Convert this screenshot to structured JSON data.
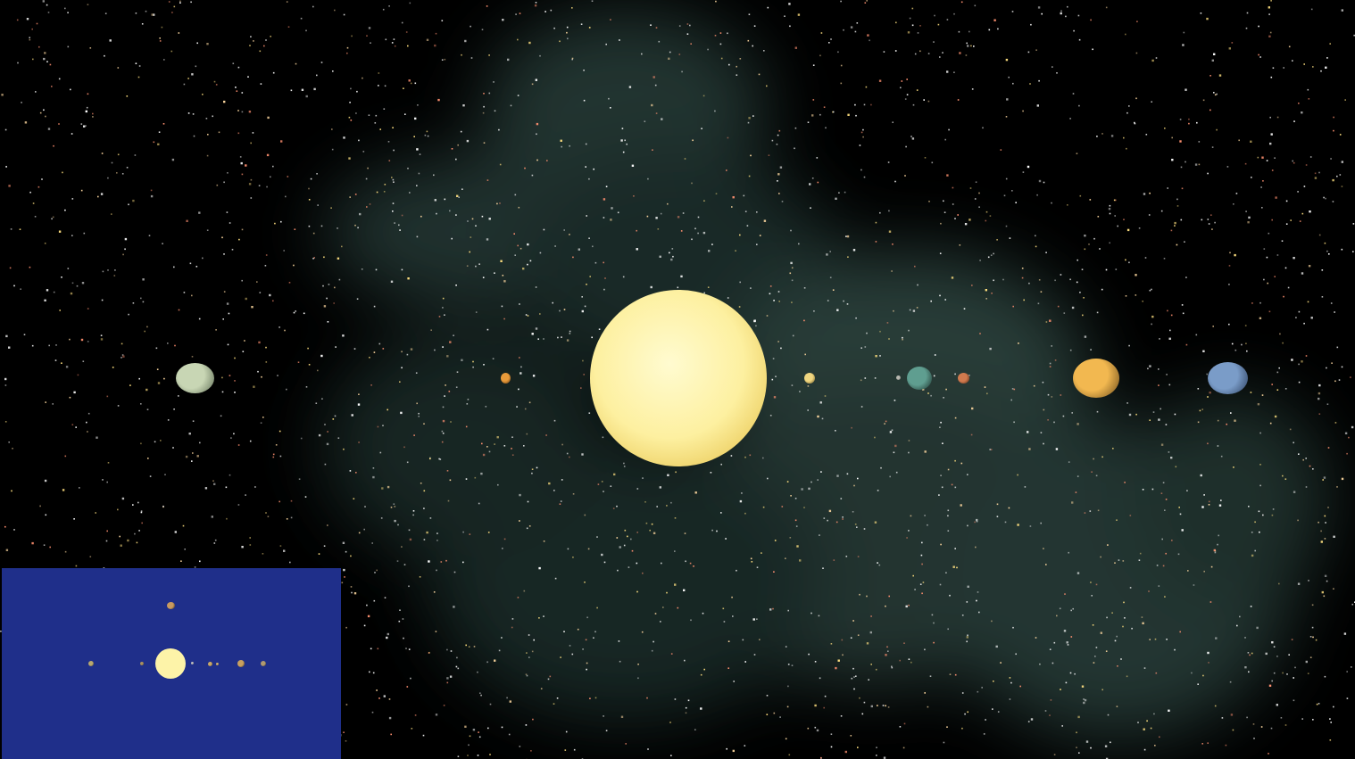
{
  "scene": {
    "background_color": "#000000",
    "nebula_color": "#4a6e66",
    "star_color": "#ffffff",
    "bodies": [
      {
        "name": "sun",
        "color": "#fdf3a8",
        "rim_color": "#f4e07a"
      },
      {
        "name": "far-left-planet",
        "color": "#c8d6b4",
        "rim_color": "#5f6e55"
      },
      {
        "name": "small-orange-planet",
        "color": "#e89a3a",
        "rim_color": "#6b3e10"
      },
      {
        "name": "small-yellow-planet",
        "color": "#f0d680",
        "rim_color": "#6b5720"
      },
      {
        "name": "tiny-grey-moon",
        "color": "#b8b8b0",
        "rim_color": "#505050"
      },
      {
        "name": "teal-planet",
        "color": "#5f9e90",
        "rim_color": "#1a2f2a"
      },
      {
        "name": "rust-planet",
        "color": "#d07a4e",
        "rim_color": "#5a2a14"
      },
      {
        "name": "gas-giant",
        "color": "#f2b850",
        "rim_color": "#6a4a1a"
      },
      {
        "name": "ice-giant",
        "color": "#7a9cc8",
        "rim_color": "#2c3f5e"
      }
    ]
  },
  "minimap": {
    "background_color": "#1f2f8a",
    "sun_color": "#fdf3a8",
    "bodies": [
      {
        "name": "mini-top-moon",
        "color": "#c89a60"
      },
      {
        "name": "mini-planet-1",
        "color": "#b8a870"
      },
      {
        "name": "mini-planet-2",
        "color": "#a89060"
      },
      {
        "name": "mini-planet-3",
        "color": "#c0c0c0"
      },
      {
        "name": "mini-planet-4",
        "color": "#c8a868"
      },
      {
        "name": "mini-planet-5",
        "color": "#d0b070"
      },
      {
        "name": "mini-planet-6",
        "color": "#c8a060"
      },
      {
        "name": "mini-planet-7",
        "color": "#b09a70"
      }
    ]
  }
}
